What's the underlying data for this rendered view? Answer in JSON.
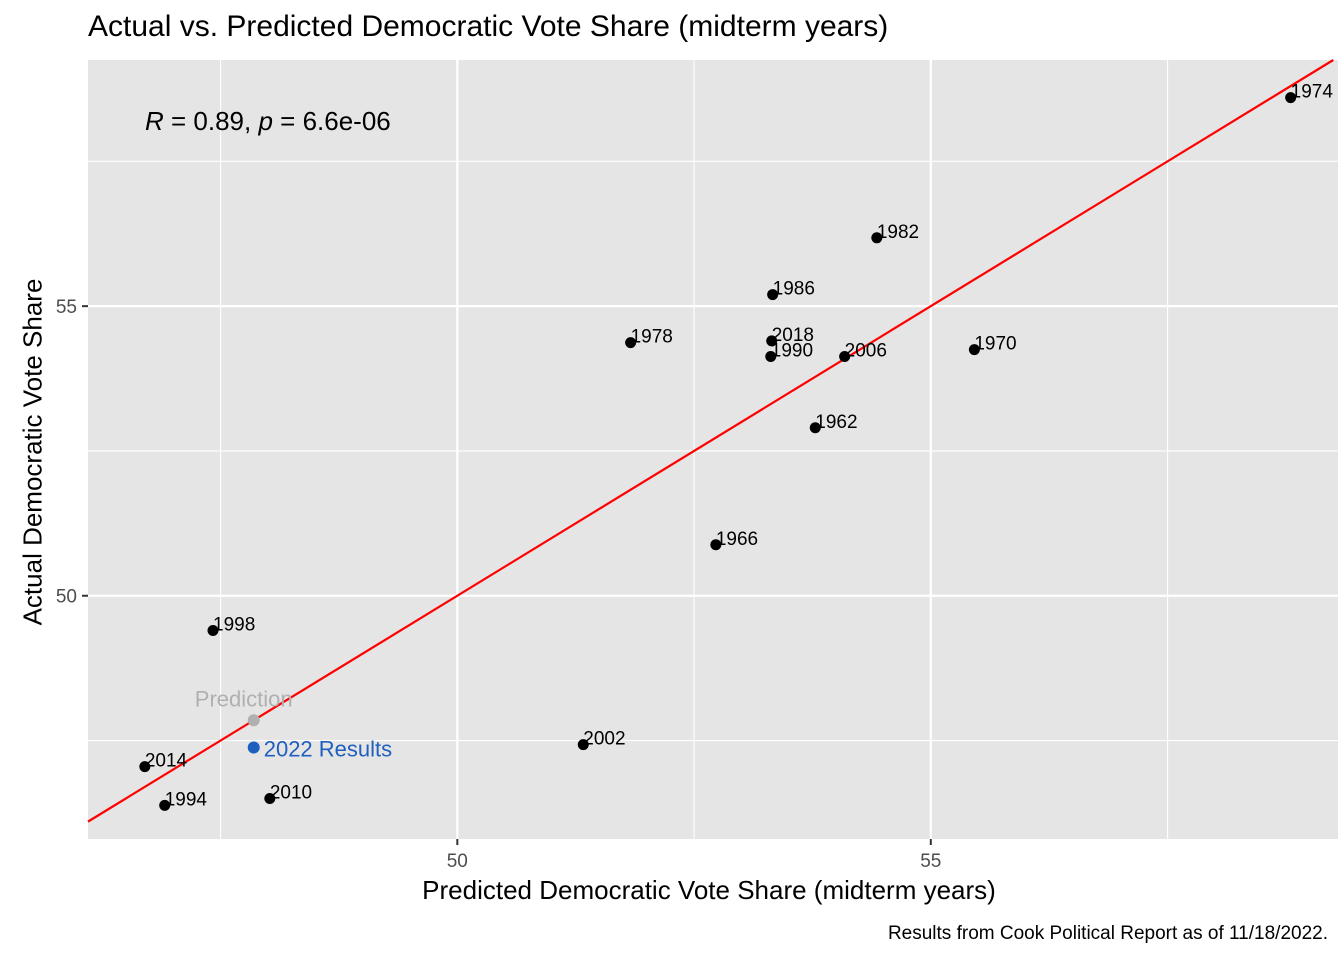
{
  "chart_data": {
    "type": "scatter",
    "title": "Actual vs. Predicted Democratic Vote Share (midterm years)",
    "xlabel": "Predicted Democratic Vote Share (midterm years)",
    "ylabel": "Actual Democratic Vote Share",
    "caption": "Results from Cook Political Report as of 11/18/2022.",
    "annotation": {
      "R": "R",
      "r_value": " = 0.89, ",
      "p": "p",
      "p_value": " = 6.6e-06"
    },
    "xlim": [
      46.1,
      59.3
    ],
    "ylim": [
      45.8,
      59.25
    ],
    "x_ticks": [
      50,
      55
    ],
    "y_ticks": [
      50,
      55
    ],
    "grid": true,
    "background": "#e5e5e5",
    "regression_line": {
      "color": "#ff0000",
      "slope": 1,
      "intercept": 0
    },
    "points": [
      {
        "label": "1974",
        "x": 58.8,
        "y": 58.6
      },
      {
        "label": "1982",
        "x": 54.43,
        "y": 56.18
      },
      {
        "label": "1986",
        "x": 53.33,
        "y": 55.2
      },
      {
        "label": "2018",
        "x": 53.32,
        "y": 54.4
      },
      {
        "label": "1990",
        "x": 53.31,
        "y": 54.13
      },
      {
        "label": "2006",
        "x": 54.09,
        "y": 54.13
      },
      {
        "label": "1978",
        "x": 51.83,
        "y": 54.37
      },
      {
        "label": "1970",
        "x": 55.46,
        "y": 54.25
      },
      {
        "label": "1962",
        "x": 53.78,
        "y": 52.9
      },
      {
        "label": "1966",
        "x": 52.73,
        "y": 50.88
      },
      {
        "label": "1998",
        "x": 47.42,
        "y": 49.4
      },
      {
        "label": "2002",
        "x": 51.33,
        "y": 47.43
      },
      {
        "label": "2014",
        "x": 46.7,
        "y": 47.05
      },
      {
        "label": "1994",
        "x": 46.91,
        "y": 46.38
      },
      {
        "label": "2010",
        "x": 48.02,
        "y": 46.5
      }
    ],
    "highlights": [
      {
        "label": "Prediction",
        "x": 47.85,
        "y": 47.85,
        "color": "#b0b0b0",
        "label_pos": "above"
      },
      {
        "label": "2022 Results",
        "x": 47.85,
        "y": 47.38,
        "color": "#1f5fbf",
        "label_pos": "right"
      }
    ]
  }
}
